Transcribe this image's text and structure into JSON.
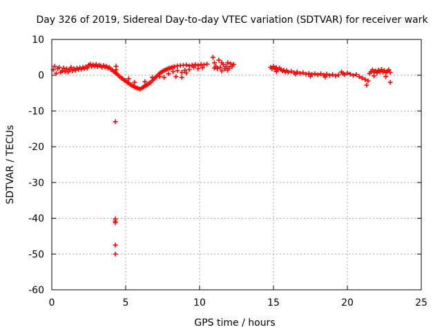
{
  "chart_data": {
    "type": "scatter",
    "title": "Day 326 of 2019, Sidereal Day-to-day VTEC variation (SDTVAR) for receiver wark",
    "xlabel": "GPS time / hours",
    "ylabel": "SDTVAR / TECUs",
    "xlim": [
      0,
      25
    ],
    "ylim": [
      -60,
      10
    ],
    "xticks": [
      0,
      5,
      10,
      15,
      20,
      25
    ],
    "yticks": [
      10,
      0,
      -10,
      -20,
      -30,
      -40,
      -50,
      -60
    ],
    "xtick_labels": [
      "0",
      "5",
      "10",
      "15",
      "20",
      "25"
    ],
    "ytick_labels": [
      "10",
      "0",
      "-10",
      "-20",
      "-30",
      "-40",
      "-50",
      "-60"
    ],
    "grid": true,
    "marker": "+",
    "series": [
      {
        "name": "SDTVAR",
        "color": "#ff0000",
        "points": [
          [
            0.1,
            1.5
          ],
          [
            0.2,
            2.5
          ],
          [
            0.3,
            0.5
          ],
          [
            0.4,
            1.8
          ],
          [
            0.5,
            2.2
          ],
          [
            0.6,
            0.8
          ],
          [
            0.7,
            1.2
          ],
          [
            0.8,
            2.0
          ],
          [
            0.9,
            1.0
          ],
          [
            1.0,
            1.8
          ],
          [
            1.1,
            0.9
          ],
          [
            1.2,
            1.6
          ],
          [
            1.3,
            2.2
          ],
          [
            1.4,
            1.2
          ],
          [
            1.5,
            1.8
          ],
          [
            1.6,
            1.4
          ],
          [
            1.7,
            2.0
          ],
          [
            1.8,
            1.6
          ],
          [
            1.9,
            2.1
          ],
          [
            2.0,
            1.7
          ],
          [
            2.1,
            2.2
          ],
          [
            2.2,
            1.9
          ],
          [
            2.3,
            2.3
          ],
          [
            2.4,
            2.0
          ],
          [
            2.5,
            2.8
          ],
          [
            2.6,
            3.1
          ],
          [
            2.7,
            2.5
          ],
          [
            2.8,
            2.9
          ],
          [
            2.9,
            2.6
          ],
          [
            3.0,
            3.0
          ],
          [
            3.1,
            2.4
          ],
          [
            3.2,
            2.8
          ],
          [
            3.3,
            2.6
          ],
          [
            3.4,
            2.2
          ],
          [
            3.5,
            2.7
          ],
          [
            3.6,
            2.3
          ],
          [
            3.7,
            2.5
          ],
          [
            3.8,
            2.0
          ],
          [
            3.9,
            2.2
          ],
          [
            4.0,
            1.6
          ],
          [
            4.1,
            1.4
          ],
          [
            4.2,
            1.0
          ],
          [
            4.3,
            0.8
          ],
          [
            4.4,
            0.4
          ],
          [
            4.5,
            0.0
          ],
          [
            4.6,
            -0.4
          ],
          [
            4.7,
            -0.8
          ],
          [
            4.8,
            -1.0
          ],
          [
            4.9,
            -1.4
          ],
          [
            5.0,
            -1.6
          ],
          [
            5.1,
            -2.0
          ],
          [
            5.2,
            -2.2
          ],
          [
            5.3,
            -2.6
          ],
          [
            5.4,
            -2.8
          ],
          [
            5.5,
            -3.0
          ],
          [
            5.6,
            -3.3
          ],
          [
            5.7,
            -3.5
          ],
          [
            5.8,
            -3.6
          ],
          [
            5.9,
            -3.8
          ],
          [
            6.0,
            -3.9
          ],
          [
            6.1,
            -3.6
          ],
          [
            6.2,
            -3.3
          ],
          [
            6.3,
            -3.0
          ],
          [
            6.4,
            -2.8
          ],
          [
            6.5,
            -2.6
          ],
          [
            6.6,
            -2.2
          ],
          [
            6.7,
            -2.0
          ],
          [
            6.8,
            -1.5
          ],
          [
            6.9,
            -1.1
          ],
          [
            7.0,
            -0.7
          ],
          [
            7.1,
            -0.3
          ],
          [
            7.2,
            0.1
          ],
          [
            7.3,
            0.5
          ],
          [
            7.4,
            0.8
          ],
          [
            7.5,
            1.1
          ],
          [
            7.6,
            1.3
          ],
          [
            7.7,
            1.5
          ],
          [
            7.8,
            1.7
          ],
          [
            7.9,
            1.9
          ],
          [
            8.0,
            2.0
          ],
          [
            8.1,
            2.1
          ],
          [
            8.2,
            2.2
          ],
          [
            8.3,
            2.4
          ],
          [
            8.5,
            2.6
          ],
          [
            8.7,
            2.7
          ],
          [
            8.9,
            2.8
          ],
          [
            9.1,
            2.9
          ],
          [
            9.3,
            2.6
          ],
          [
            9.5,
            2.8
          ],
          [
            9.7,
            3.0
          ],
          [
            9.9,
            2.7
          ],
          [
            10.1,
            3.0
          ],
          [
            10.3,
            2.9
          ],
          [
            10.5,
            3.1
          ],
          [
            7.6,
            -0.6
          ],
          [
            7.9,
            0.4
          ],
          [
            8.2,
            1.0
          ],
          [
            8.5,
            1.3
          ],
          [
            8.8,
            0.8
          ],
          [
            9.1,
            0.6
          ],
          [
            9.3,
            1.6
          ],
          [
            9.6,
            2.2
          ],
          [
            9.9,
            1.8
          ],
          [
            10.2,
            2.1
          ],
          [
            5.2,
            -1.0
          ],
          [
            5.6,
            -2.0
          ],
          [
            6.3,
            -1.8
          ],
          [
            6.8,
            -0.6
          ],
          [
            7.3,
            -0.4
          ],
          [
            8.4,
            -0.4
          ],
          [
            8.8,
            -0.6
          ],
          [
            9.0,
            1.4
          ],
          [
            4.35,
            2.5
          ],
          [
            4.35,
            1.5
          ],
          [
            4.35,
            0.5
          ],
          [
            10.9,
            5.0
          ],
          [
            11.0,
            3.5
          ],
          [
            11.1,
            2.5
          ],
          [
            11.2,
            1.8
          ],
          [
            11.3,
            4.2
          ],
          [
            11.4,
            2.2
          ],
          [
            11.5,
            3.5
          ],
          [
            11.6,
            3.0
          ],
          [
            11.7,
            1.8
          ],
          [
            11.8,
            2.5
          ],
          [
            11.9,
            3.5
          ],
          [
            12.0,
            2.0
          ],
          [
            12.1,
            3.2
          ],
          [
            12.2,
            2.5
          ],
          [
            12.3,
            3.0
          ],
          [
            11.5,
            1.2
          ],
          [
            11.0,
            2.0
          ],
          [
            11.9,
            1.4
          ],
          [
            14.8,
            2.2
          ],
          [
            14.9,
            1.8
          ],
          [
            15.0,
            2.5
          ],
          [
            15.1,
            1.7
          ],
          [
            15.2,
            2.1
          ],
          [
            15.3,
            1.5
          ],
          [
            15.4,
            2.0
          ],
          [
            15.5,
            1.6
          ],
          [
            15.6,
            1.2
          ],
          [
            15.7,
            1.4
          ],
          [
            15.8,
            0.9
          ],
          [
            15.9,
            1.3
          ],
          [
            16.0,
            0.8
          ],
          [
            16.2,
            1.1
          ],
          [
            16.4,
            0.7
          ],
          [
            16.6,
            0.9
          ],
          [
            16.8,
            0.5
          ],
          [
            17.0,
            0.7
          ],
          [
            17.2,
            0.3
          ],
          [
            17.4,
            0.5
          ],
          [
            17.6,
            0.2
          ],
          [
            17.8,
            0.4
          ],
          [
            18.0,
            0.1
          ],
          [
            18.2,
            0.4
          ],
          [
            18.4,
            0.0
          ],
          [
            18.6,
            0.3
          ],
          [
            18.8,
            -0.1
          ],
          [
            19.0,
            0.2
          ],
          [
            19.2,
            -0.2
          ],
          [
            19.4,
            0.1
          ],
          [
            19.6,
            0.9
          ],
          [
            19.7,
            0.5
          ],
          [
            19.8,
            0.2
          ],
          [
            20.0,
            0.6
          ],
          [
            20.2,
            0.3
          ],
          [
            20.4,
            -0.1
          ],
          [
            20.6,
            0.2
          ],
          [
            20.8,
            -0.4
          ],
          [
            21.0,
            -0.8
          ],
          [
            21.2,
            -1.2
          ],
          [
            21.3,
            -2.8
          ],
          [
            21.4,
            -1.6
          ],
          [
            21.5,
            0.5
          ],
          [
            21.6,
            1.0
          ],
          [
            21.7,
            1.5
          ],
          [
            21.8,
            0.8
          ],
          [
            21.9,
            1.2
          ],
          [
            22.0,
            0.6
          ],
          [
            22.1,
            1.4
          ],
          [
            22.2,
            1.0
          ],
          [
            22.3,
            1.6
          ],
          [
            22.4,
            0.9
          ],
          [
            22.5,
            1.3
          ],
          [
            22.6,
            0.7
          ],
          [
            22.7,
            1.1
          ],
          [
            22.8,
            1.5
          ],
          [
            22.9,
            0.8
          ],
          [
            22.9,
            -2.0
          ],
          [
            17.5,
            -0.3
          ],
          [
            18.5,
            -0.5
          ],
          [
            16.5,
            0.3
          ],
          [
            15.2,
            1.0
          ],
          [
            21.8,
            -0.2
          ],
          [
            22.6,
            -0.4
          ],
          [
            4.3,
            -13.0
          ],
          [
            4.3,
            -40.2
          ],
          [
            4.3,
            -40.8
          ],
          [
            4.3,
            -41.2
          ],
          [
            4.3,
            -47.5
          ],
          [
            4.3,
            -50.0
          ]
        ]
      }
    ]
  }
}
